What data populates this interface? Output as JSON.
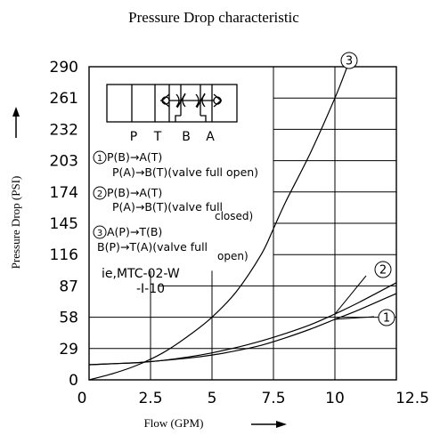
{
  "chart_data": {
    "type": "line",
    "title": "Pressure Drop characteristic",
    "xlabel": "Flow (GPM)",
    "ylabel": "Pressure Drop (PSI)",
    "xlim": [
      0,
      12.5
    ],
    "ylim": [
      0,
      290
    ],
    "x_ticks": [
      "0",
      "2.5",
      "5",
      "7.5",
      "10",
      "12.5"
    ],
    "y_ticks": [
      "0",
      "29",
      "58",
      "87",
      "116",
      "145",
      "174",
      "203",
      "232",
      "261",
      "290"
    ],
    "grid": true,
    "series": [
      {
        "name": "1",
        "label_text": "1",
        "x": [
          0,
          1,
          2,
          3,
          4,
          5,
          6,
          7,
          8,
          9,
          10,
          11,
          12.5
        ],
        "y": [
          14,
          15,
          16,
          18,
          20,
          23,
          27,
          32,
          39,
          47,
          56,
          65,
          80
        ]
      },
      {
        "name": "2",
        "label_text": "2",
        "x": [
          0,
          1,
          2,
          3,
          4,
          5,
          6,
          7,
          8,
          9,
          10,
          11,
          12.5
        ],
        "y": [
          14,
          15,
          16,
          18,
          21,
          25,
          30,
          36,
          43,
          51,
          61,
          72,
          90
        ]
      },
      {
        "name": "3",
        "label_text": "3",
        "x": [
          0,
          1,
          2,
          3,
          4,
          5,
          6,
          7,
          7.5,
          8,
          9,
          10,
          10.5
        ],
        "y": [
          0,
          6,
          14,
          25,
          40,
          58,
          82,
          116,
          140,
          165,
          210,
          261,
          290
        ]
      }
    ],
    "annotations": {
      "circuit_labels": [
        "P",
        "T",
        "B",
        "A"
      ],
      "conditions": [
        {
          "num": "1",
          "line1": "P(B)→A(T)",
          "line2": "P(A)→B(T)(valve full open)",
          "line3": ""
        },
        {
          "num": "2",
          "line1": "P(B)→A(T)",
          "line2": "P(A)→B(T)(valve full",
          "line3": "closed)"
        },
        {
          "num": "3",
          "line1": "A(P)→T(B)",
          "line2": "B(P)→T(A)(valve full",
          "line3": "open)"
        }
      ],
      "model_line1": "ie,MTC-02-W",
      "model_line2": "-I-10"
    }
  }
}
